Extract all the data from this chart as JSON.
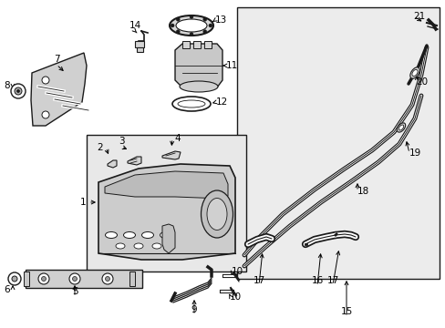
{
  "bg_color": "#ffffff",
  "lc": "#1a1a1a",
  "box_fill_right": "#ebebeb",
  "box_fill_tank": "#e8e8e8",
  "part_fill": "#d4d4d4",
  "fig_width": 4.89,
  "fig_height": 3.6,
  "dpi": 100
}
